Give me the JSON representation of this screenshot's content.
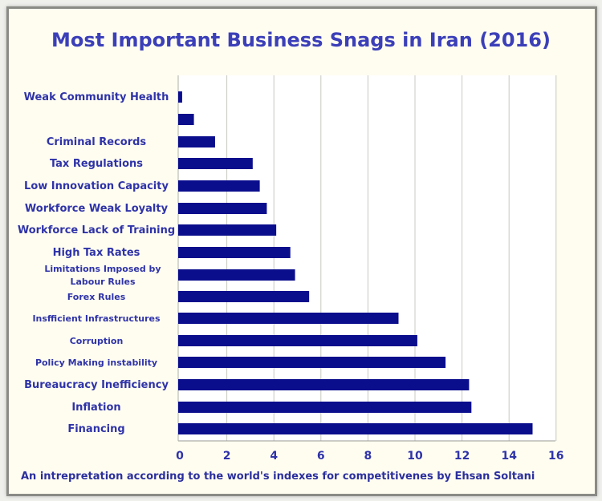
{
  "title": "Most Important Business Snags in Iran (2016)",
  "footnote": "An intrepretation according to the world's indexes for competitivenes by Ehsan Soltani",
  "colors": {
    "bar": "#0a0d8c",
    "text": "#2f33a8",
    "grid": "#c8c8c0",
    "plot_bg": "#ffffff"
  },
  "chart_data": {
    "type": "bar",
    "orientation": "horizontal",
    "title": "Most Important Business Snags in Iran (2016)",
    "xlabel": "",
    "ylabel": "",
    "xlim": [
      0,
      16
    ],
    "xticks": [
      0,
      2,
      4,
      6,
      8,
      10,
      12,
      14,
      16
    ],
    "grid": "vertical",
    "categories": [
      "Weak Community Health",
      "",
      "Criminal Records",
      "Tax Regulations",
      "Low Innovation Capacity",
      "Workforce Weak Loyalty",
      "Workforce Lack of Training",
      "High Tax Rates",
      "Limitations Imposed by\nLabour Rules",
      "Forex Rules",
      "Insfficient Infrastructures",
      "Corruption",
      "Policy Making instability",
      "Bureaucracy Inefficiency",
      "Inflation",
      "Financing"
    ],
    "values": [
      0.1,
      0.6,
      1.5,
      3.1,
      3.4,
      3.7,
      4.1,
      4.7,
      4.9,
      5.5,
      9.3,
      10.1,
      11.3,
      12.3,
      12.4,
      15.0
    ]
  }
}
